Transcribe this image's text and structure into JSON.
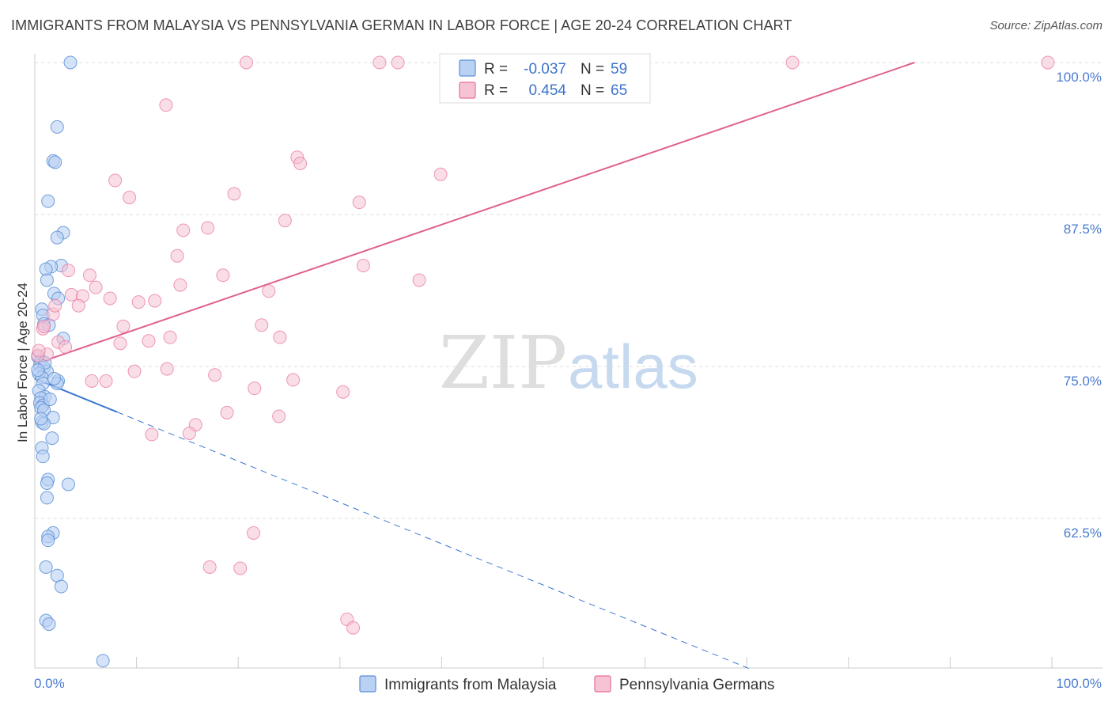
{
  "title": "IMMIGRANTS FROM MALAYSIA VS PENNSYLVANIA GERMAN IN LABOR FORCE | AGE 20-24 CORRELATION CHART",
  "source": "Source: ZipAtlas.com",
  "watermark": {
    "zip": "ZIP",
    "atlas": "atlas"
  },
  "colors": {
    "blue": "#5b8fd6",
    "blue_fill": "#b9d1f3",
    "blue_line": "#3b77d1",
    "pink": "#e86e98",
    "pink_fill": "#f6c3d4",
    "pink_line": "#e06090",
    "axis_text": "#4a7bd0",
    "grid": "#dddddd"
  },
  "legend": {
    "rows": [
      {
        "r_label": "R =",
        "r_value": "-0.037",
        "n_label": "N =",
        "n_value": "59"
      },
      {
        "r_label": "R =",
        "r_value": "0.454",
        "n_label": "N =",
        "n_value": "65"
      }
    ]
  },
  "bottom_legend": [
    "Immigrants from Malaysia",
    "Pennsylvania Germans"
  ],
  "chart_data": {
    "type": "scatter",
    "title": "IMMIGRANTS FROM MALAYSIA VS PENNSYLVANIA GERMAN IN LABOR FORCE | AGE 20-24 CORRELATION CHART",
    "xlabel": "",
    "ylabel": "In Labor Force | Age 20-24",
    "xlim": [
      0,
      100
    ],
    "ylim": [
      50.5,
      101
    ],
    "x_tick_labels": [
      "0.0%",
      "100.0%"
    ],
    "y_ticks": [
      62.5,
      75.0,
      87.5,
      100.0
    ],
    "y_tick_labels": [
      "62.5%",
      "75.0%",
      "87.5%",
      "100.0%"
    ],
    "series": [
      {
        "name": "Immigrants from Malaysia",
        "color": "blue",
        "points": [
          [
            3.5,
            100.0
          ],
          [
            2.2,
            94.7
          ],
          [
            1.8,
            91.9
          ],
          [
            2.0,
            91.8
          ],
          [
            1.3,
            88.6
          ],
          [
            2.8,
            86.0
          ],
          [
            2.2,
            85.6
          ],
          [
            2.6,
            83.3
          ],
          [
            1.6,
            83.2
          ],
          [
            1.1,
            83.0
          ],
          [
            1.2,
            82.1
          ],
          [
            1.9,
            81.0
          ],
          [
            2.3,
            80.6
          ],
          [
            0.7,
            79.7
          ],
          [
            0.8,
            79.2
          ],
          [
            0.9,
            78.5
          ],
          [
            1.4,
            78.4
          ],
          [
            2.8,
            77.3
          ],
          [
            0.3,
            75.8
          ],
          [
            0.6,
            75.5
          ],
          [
            0.5,
            75.1
          ],
          [
            0.9,
            74.9
          ],
          [
            1.2,
            74.6
          ],
          [
            0.4,
            74.4
          ],
          [
            0.7,
            74.1
          ],
          [
            2.3,
            73.8
          ],
          [
            0.8,
            73.6
          ],
          [
            0.4,
            73.0
          ],
          [
            1.0,
            72.5
          ],
          [
            0.6,
            72.4
          ],
          [
            0.5,
            72.0
          ],
          [
            0.8,
            71.8
          ],
          [
            0.6,
            71.6
          ],
          [
            0.9,
            71.4
          ],
          [
            1.8,
            70.8
          ],
          [
            0.7,
            70.4
          ],
          [
            0.9,
            70.3
          ],
          [
            1.7,
            69.1
          ],
          [
            0.7,
            68.3
          ],
          [
            0.8,
            67.6
          ],
          [
            1.3,
            65.7
          ],
          [
            1.2,
            65.4
          ],
          [
            3.3,
            65.3
          ],
          [
            1.2,
            64.2
          ],
          [
            1.8,
            61.3
          ],
          [
            1.3,
            61.0
          ],
          [
            1.3,
            60.7
          ],
          [
            1.1,
            58.5
          ],
          [
            2.2,
            57.8
          ],
          [
            2.6,
            56.9
          ],
          [
            1.1,
            54.1
          ],
          [
            1.4,
            53.8
          ],
          [
            6.7,
            50.8
          ],
          [
            2.2,
            73.6
          ],
          [
            1.0,
            75.3
          ],
          [
            0.3,
            74.7
          ],
          [
            1.5,
            72.3
          ],
          [
            0.6,
            70.7
          ],
          [
            1.9,
            74.0
          ]
        ]
      },
      {
        "name": "Pennsylvania Germans",
        "color": "pink",
        "points": [
          [
            20.8,
            100.0
          ],
          [
            33.9,
            100.0
          ],
          [
            35.7,
            100.0
          ],
          [
            47.2,
            100.0
          ],
          [
            74.5,
            100.0
          ],
          [
            99.6,
            100.0
          ],
          [
            12.9,
            96.5
          ],
          [
            25.8,
            92.2
          ],
          [
            26.1,
            91.7
          ],
          [
            39.9,
            90.8
          ],
          [
            7.9,
            90.3
          ],
          [
            9.3,
            88.9
          ],
          [
            19.6,
            89.2
          ],
          [
            31.9,
            88.5
          ],
          [
            24.6,
            87.0
          ],
          [
            14.6,
            86.2
          ],
          [
            17.0,
            86.4
          ],
          [
            14.0,
            84.1
          ],
          [
            32.3,
            83.3
          ],
          [
            3.3,
            82.9
          ],
          [
            5.4,
            82.5
          ],
          [
            18.5,
            82.5
          ],
          [
            14.3,
            81.7
          ],
          [
            37.8,
            82.1
          ],
          [
            6.0,
            81.5
          ],
          [
            23.0,
            81.2
          ],
          [
            3.6,
            80.9
          ],
          [
            4.7,
            80.8
          ],
          [
            7.4,
            80.6
          ],
          [
            10.2,
            80.3
          ],
          [
            11.8,
            80.4
          ],
          [
            4.3,
            80.0
          ],
          [
            1.8,
            79.3
          ],
          [
            22.3,
            78.4
          ],
          [
            8.7,
            78.3
          ],
          [
            0.8,
            78.1
          ],
          [
            13.3,
            77.4
          ],
          [
            24.1,
            77.4
          ],
          [
            11.2,
            77.1
          ],
          [
            2.3,
            77.0
          ],
          [
            8.4,
            76.9
          ],
          [
            3.0,
            76.6
          ],
          [
            1.2,
            76.0
          ],
          [
            13.0,
            74.8
          ],
          [
            9.8,
            74.6
          ],
          [
            17.7,
            74.3
          ],
          [
            7.0,
            73.8
          ],
          [
            5.6,
            73.8
          ],
          [
            25.4,
            73.9
          ],
          [
            21.6,
            73.2
          ],
          [
            30.3,
            72.9
          ],
          [
            18.9,
            71.2
          ],
          [
            24.0,
            70.9
          ],
          [
            15.8,
            70.2
          ],
          [
            15.2,
            69.5
          ],
          [
            11.5,
            69.4
          ],
          [
            21.5,
            61.3
          ],
          [
            17.2,
            58.5
          ],
          [
            20.2,
            58.4
          ],
          [
            30.7,
            54.2
          ],
          [
            31.3,
            53.5
          ],
          [
            0.3,
            75.9
          ],
          [
            0.4,
            76.3
          ],
          [
            0.9,
            78.3
          ],
          [
            2.0,
            80.0
          ]
        ]
      }
    ],
    "trend_lines": [
      {
        "series": "Immigrants from Malaysia",
        "solid_x": [
          0,
          8.1
        ],
        "dashed_x": [
          8.1,
          70.2
        ],
        "y_at_0": 74.0,
        "slope": -0.3396
      },
      {
        "series": "Pennsylvania Germans",
        "solid_x": [
          0,
          86.5
        ],
        "y_at_0": 75.2,
        "slope": 0.2867
      }
    ]
  }
}
